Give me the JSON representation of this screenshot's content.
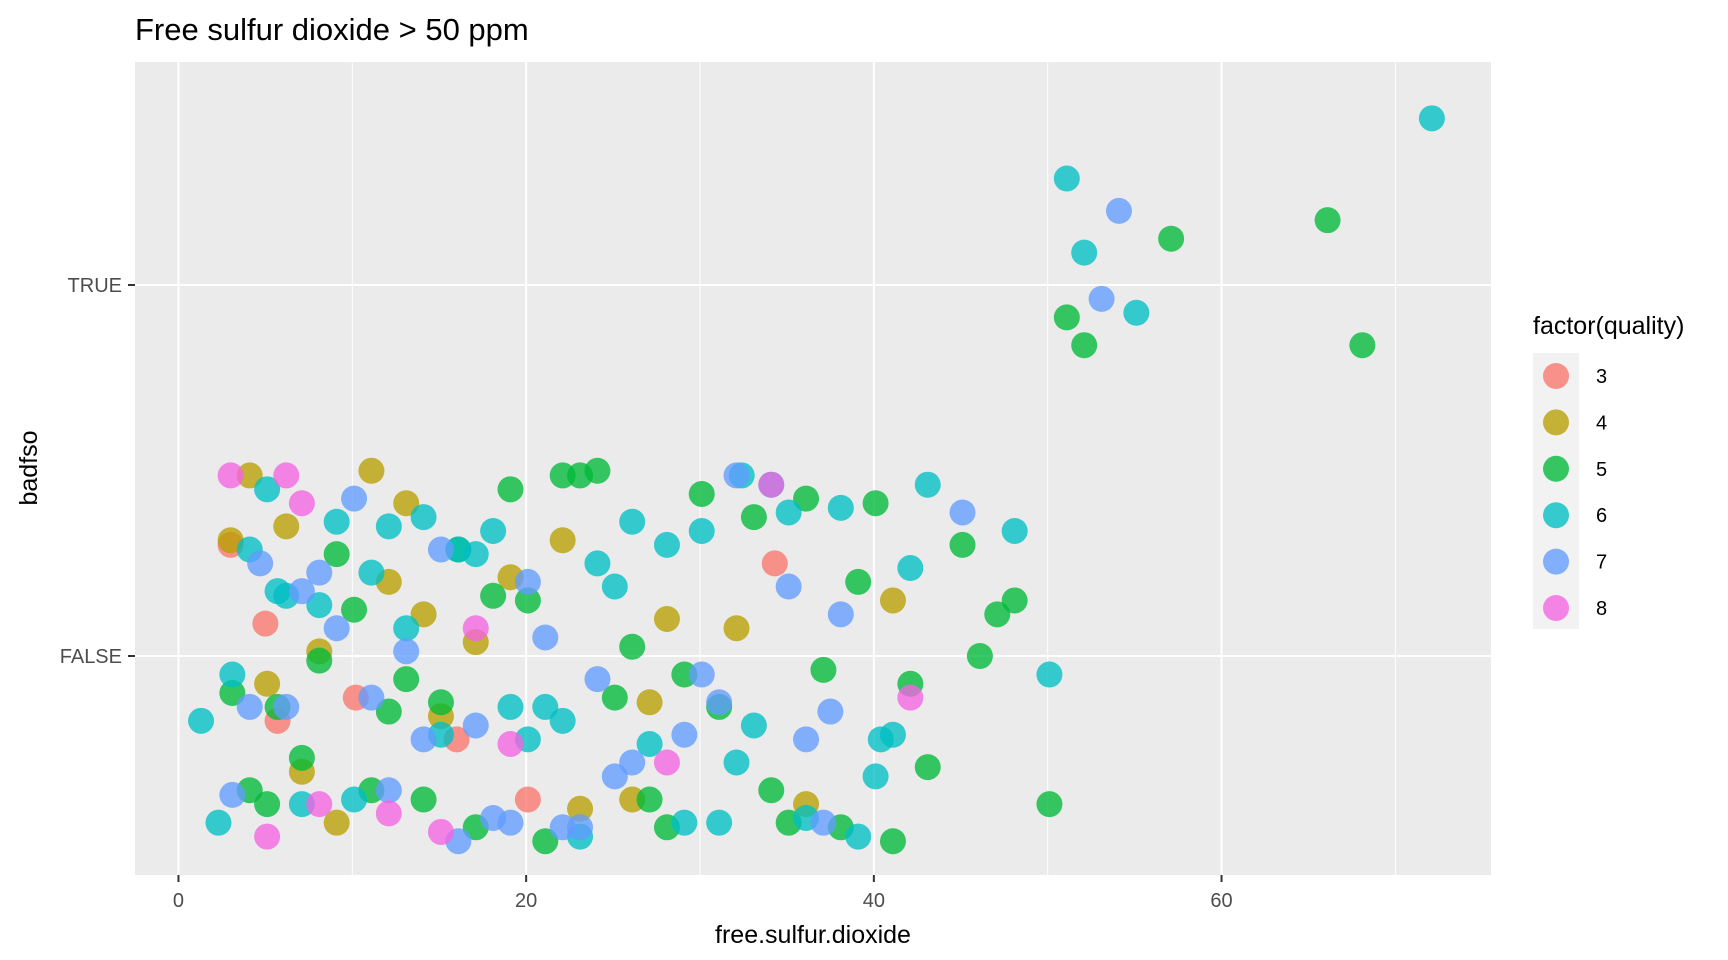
{
  "chart_data": {
    "type": "scatter",
    "title": "Free sulfur dioxide > 50 ppm",
    "xlabel": "free.sulfur.dioxide",
    "ylabel": "badfso",
    "xlim": [
      -2.5,
      75.5
    ],
    "x_ticks": [
      0,
      20,
      40,
      60
    ],
    "y_categories": [
      "FALSE",
      "TRUE"
    ],
    "jitter_note": "points are jittered vertically around their category",
    "grid": true,
    "legend": {
      "title": "factor(quality)",
      "position": "right",
      "levels": [
        "3",
        "4",
        "5",
        "6",
        "7",
        "8"
      ],
      "colors": {
        "3": "#F8766D",
        "4": "#B79F00",
        "5": "#00BA38",
        "6": "#00BFC4",
        "7": "#619CFF",
        "8": "#F564E3"
      }
    },
    "series": [
      {
        "name": "3",
        "points": [
          {
            "x": 3,
            "y": "FALSE",
            "j": 0.24
          },
          {
            "x": 5,
            "y": "FALSE",
            "j": 0.07
          },
          {
            "x": 5.7,
            "y": "FALSE",
            "j": -0.14
          },
          {
            "x": 10.2,
            "y": "FALSE",
            "j": -0.09
          },
          {
            "x": 16,
            "y": "FALSE",
            "j": -0.18
          },
          {
            "x": 20.1,
            "y": "FALSE",
            "j": -0.31
          },
          {
            "x": 34.3,
            "y": "FALSE",
            "j": 0.2
          }
        ]
      },
      {
        "name": "4",
        "points": [
          {
            "x": 3,
            "y": "FALSE",
            "j": 0.25
          },
          {
            "x": 4.1,
            "y": "FALSE",
            "j": 0.39
          },
          {
            "x": 5.1,
            "y": "FALSE",
            "j": -0.06
          },
          {
            "x": 6.2,
            "y": "FALSE",
            "j": 0.28
          },
          {
            "x": 7.1,
            "y": "FALSE",
            "j": -0.25
          },
          {
            "x": 8.1,
            "y": "FALSE",
            "j": 0.01
          },
          {
            "x": 9.1,
            "y": "FALSE",
            "j": -0.36
          },
          {
            "x": 11.1,
            "y": "FALSE",
            "j": 0.4
          },
          {
            "x": 12.1,
            "y": "FALSE",
            "j": 0.16
          },
          {
            "x": 13.1,
            "y": "FALSE",
            "j": 0.33
          },
          {
            "x": 14.1,
            "y": "FALSE",
            "j": 0.09
          },
          {
            "x": 15.1,
            "y": "FALSE",
            "j": -0.13
          },
          {
            "x": 17.1,
            "y": "FALSE",
            "j": 0.03
          },
          {
            "x": 19.1,
            "y": "FALSE",
            "j": 0.17
          },
          {
            "x": 22.1,
            "y": "FALSE",
            "j": 0.25
          },
          {
            "x": 23.1,
            "y": "FALSE",
            "j": -0.33
          },
          {
            "x": 26.1,
            "y": "FALSE",
            "j": -0.31
          },
          {
            "x": 27.1,
            "y": "FALSE",
            "j": -0.1
          },
          {
            "x": 28.1,
            "y": "FALSE",
            "j": 0.08
          },
          {
            "x": 32.1,
            "y": "FALSE",
            "j": 0.06
          },
          {
            "x": 36.1,
            "y": "FALSE",
            "j": -0.32
          },
          {
            "x": 41.1,
            "y": "FALSE",
            "j": 0.12
          }
        ]
      },
      {
        "name": "5",
        "points": [
          {
            "x": 3.1,
            "y": "FALSE",
            "j": -0.08
          },
          {
            "x": 4.1,
            "y": "FALSE",
            "j": -0.29
          },
          {
            "x": 5.1,
            "y": "FALSE",
            "j": -0.32
          },
          {
            "x": 5.7,
            "y": "FALSE",
            "j": -0.11
          },
          {
            "x": 7.1,
            "y": "FALSE",
            "j": -0.22
          },
          {
            "x": 8.1,
            "y": "FALSE",
            "j": -0.01
          },
          {
            "x": 9.1,
            "y": "FALSE",
            "j": 0.22
          },
          {
            "x": 10.1,
            "y": "FALSE",
            "j": 0.1
          },
          {
            "x": 11.1,
            "y": "FALSE",
            "j": -0.29
          },
          {
            "x": 12.1,
            "y": "FALSE",
            "j": -0.12
          },
          {
            "x": 13.1,
            "y": "FALSE",
            "j": -0.05
          },
          {
            "x": 14.1,
            "y": "FALSE",
            "j": -0.31
          },
          {
            "x": 15.1,
            "y": "FALSE",
            "j": -0.1
          },
          {
            "x": 16.1,
            "y": "FALSE",
            "j": 0.23
          },
          {
            "x": 17.1,
            "y": "FALSE",
            "j": -0.37
          },
          {
            "x": 18.1,
            "y": "FALSE",
            "j": 0.13
          },
          {
            "x": 19.1,
            "y": "FALSE",
            "j": 0.36
          },
          {
            "x": 20.1,
            "y": "FALSE",
            "j": 0.12
          },
          {
            "x": 21.1,
            "y": "FALSE",
            "j": -0.4
          },
          {
            "x": 22.1,
            "y": "FALSE",
            "j": 0.39
          },
          {
            "x": 23.1,
            "y": "FALSE",
            "j": 0.39
          },
          {
            "x": 24.1,
            "y": "FALSE",
            "j": 0.4
          },
          {
            "x": 25.1,
            "y": "FALSE",
            "j": -0.09
          },
          {
            "x": 26.1,
            "y": "FALSE",
            "j": 0.02
          },
          {
            "x": 27.1,
            "y": "FALSE",
            "j": -0.31
          },
          {
            "x": 28.1,
            "y": "FALSE",
            "j": -0.37
          },
          {
            "x": 29.1,
            "y": "FALSE",
            "j": -0.04
          },
          {
            "x": 30.1,
            "y": "FALSE",
            "j": 0.35
          },
          {
            "x": 31.1,
            "y": "FALSE",
            "j": -0.11
          },
          {
            "x": 33.1,
            "y": "FALSE",
            "j": 0.3
          },
          {
            "x": 34.1,
            "y": "FALSE",
            "j": -0.29
          },
          {
            "x": 35.1,
            "y": "FALSE",
            "j": -0.36
          },
          {
            "x": 36.1,
            "y": "FALSE",
            "j": 0.34
          },
          {
            "x": 37.1,
            "y": "FALSE",
            "j": -0.03
          },
          {
            "x": 38.1,
            "y": "FALSE",
            "j": -0.37
          },
          {
            "x": 39.1,
            "y": "FALSE",
            "j": 0.16
          },
          {
            "x": 40.1,
            "y": "FALSE",
            "j": 0.33
          },
          {
            "x": 41.1,
            "y": "FALSE",
            "j": -0.4
          },
          {
            "x": 42.1,
            "y": "FALSE",
            "j": -0.06
          },
          {
            "x": 43.1,
            "y": "FALSE",
            "j": -0.24
          },
          {
            "x": 45.1,
            "y": "FALSE",
            "j": 0.24
          },
          {
            "x": 46.1,
            "y": "FALSE",
            "j": 0.0
          },
          {
            "x": 47.1,
            "y": "FALSE",
            "j": 0.09
          },
          {
            "x": 48.1,
            "y": "FALSE",
            "j": 0.12
          },
          {
            "x": 50.1,
            "y": "FALSE",
            "j": -0.32
          },
          {
            "x": 51.1,
            "y": "TRUE",
            "j": -0.07
          },
          {
            "x": 52.1,
            "y": "TRUE",
            "j": -0.13
          },
          {
            "x": 57.1,
            "y": "TRUE",
            "j": 0.1
          },
          {
            "x": 66.1,
            "y": "TRUE",
            "j": 0.14
          },
          {
            "x": 68.1,
            "y": "TRUE",
            "j": -0.13
          }
        ]
      },
      {
        "name": "6",
        "points": [
          {
            "x": 1.3,
            "y": "FALSE",
            "j": -0.14
          },
          {
            "x": 2.3,
            "y": "FALSE",
            "j": -0.36
          },
          {
            "x": 3.1,
            "y": "FALSE",
            "j": -0.04
          },
          {
            "x": 4.1,
            "y": "FALSE",
            "j": 0.23
          },
          {
            "x": 5.1,
            "y": "FALSE",
            "j": 0.36
          },
          {
            "x": 5.7,
            "y": "FALSE",
            "j": 0.14
          },
          {
            "x": 6.2,
            "y": "FALSE",
            "j": 0.13
          },
          {
            "x": 7.1,
            "y": "FALSE",
            "j": -0.32
          },
          {
            "x": 8.1,
            "y": "FALSE",
            "j": 0.11
          },
          {
            "x": 9.1,
            "y": "FALSE",
            "j": 0.29
          },
          {
            "x": 10.1,
            "y": "FALSE",
            "j": -0.31
          },
          {
            "x": 11.1,
            "y": "FALSE",
            "j": 0.18
          },
          {
            "x": 12.1,
            "y": "FALSE",
            "j": 0.28
          },
          {
            "x": 13.1,
            "y": "FALSE",
            "j": 0.06
          },
          {
            "x": 14.1,
            "y": "FALSE",
            "j": 0.3
          },
          {
            "x": 15.1,
            "y": "FALSE",
            "j": -0.17
          },
          {
            "x": 16.1,
            "y": "FALSE",
            "j": 0.23
          },
          {
            "x": 17.1,
            "y": "FALSE",
            "j": 0.22
          },
          {
            "x": 18.1,
            "y": "FALSE",
            "j": 0.27
          },
          {
            "x": 19.1,
            "y": "FALSE",
            "j": -0.11
          },
          {
            "x": 20.1,
            "y": "FALSE",
            "j": -0.18
          },
          {
            "x": 21.1,
            "y": "FALSE",
            "j": -0.11
          },
          {
            "x": 22.1,
            "y": "FALSE",
            "j": -0.14
          },
          {
            "x": 23.1,
            "y": "FALSE",
            "j": -0.39
          },
          {
            "x": 24.1,
            "y": "FALSE",
            "j": 0.2
          },
          {
            "x": 25.1,
            "y": "FALSE",
            "j": 0.15
          },
          {
            "x": 26.1,
            "y": "FALSE",
            "j": 0.29
          },
          {
            "x": 27.1,
            "y": "FALSE",
            "j": -0.19
          },
          {
            "x": 28.1,
            "y": "FALSE",
            "j": 0.24
          },
          {
            "x": 29.1,
            "y": "FALSE",
            "j": -0.36
          },
          {
            "x": 30.1,
            "y": "FALSE",
            "j": 0.27
          },
          {
            "x": 31.1,
            "y": "FALSE",
            "j": -0.36
          },
          {
            "x": 32.1,
            "y": "FALSE",
            "j": -0.23
          },
          {
            "x": 32.4,
            "y": "FALSE",
            "j": 0.39
          },
          {
            "x": 33.1,
            "y": "FALSE",
            "j": -0.15
          },
          {
            "x": 34.1,
            "y": "FALSE",
            "j": 0.37
          },
          {
            "x": 35.1,
            "y": "FALSE",
            "j": 0.31
          },
          {
            "x": 36.1,
            "y": "FALSE",
            "j": -0.35
          },
          {
            "x": 38.1,
            "y": "FALSE",
            "j": 0.32
          },
          {
            "x": 39.1,
            "y": "FALSE",
            "j": -0.39
          },
          {
            "x": 40.1,
            "y": "FALSE",
            "j": -0.26
          },
          {
            "x": 40.4,
            "y": "FALSE",
            "j": -0.18
          },
          {
            "x": 41.1,
            "y": "FALSE",
            "j": -0.17
          },
          {
            "x": 42.1,
            "y": "FALSE",
            "j": 0.19
          },
          {
            "x": 43.1,
            "y": "FALSE",
            "j": 0.37
          },
          {
            "x": 48.1,
            "y": "FALSE",
            "j": 0.27
          },
          {
            "x": 50.1,
            "y": "FALSE",
            "j": -0.04
          },
          {
            "x": 51.1,
            "y": "TRUE",
            "j": 0.23
          },
          {
            "x": 52.1,
            "y": "TRUE",
            "j": 0.07
          },
          {
            "x": 55.1,
            "y": "TRUE",
            "j": -0.06
          },
          {
            "x": 72.1,
            "y": "TRUE",
            "j": 0.36
          }
        ]
      },
      {
        "name": "7",
        "points": [
          {
            "x": 3.1,
            "y": "FALSE",
            "j": -0.3
          },
          {
            "x": 4.1,
            "y": "FALSE",
            "j": -0.11
          },
          {
            "x": 4.7,
            "y": "FALSE",
            "j": 0.2
          },
          {
            "x": 6.2,
            "y": "FALSE",
            "j": -0.11
          },
          {
            "x": 7.1,
            "y": "FALSE",
            "j": 0.14
          },
          {
            "x": 8.1,
            "y": "FALSE",
            "j": 0.18
          },
          {
            "x": 9.1,
            "y": "FALSE",
            "j": 0.06
          },
          {
            "x": 10.1,
            "y": "FALSE",
            "j": 0.34
          },
          {
            "x": 11.1,
            "y": "FALSE",
            "j": -0.09
          },
          {
            "x": 12.1,
            "y": "FALSE",
            "j": -0.29
          },
          {
            "x": 13.1,
            "y": "FALSE",
            "j": 0.01
          },
          {
            "x": 14.1,
            "y": "FALSE",
            "j": -0.18
          },
          {
            "x": 15.1,
            "y": "FALSE",
            "j": 0.23
          },
          {
            "x": 16.1,
            "y": "FALSE",
            "j": -0.4
          },
          {
            "x": 17.1,
            "y": "FALSE",
            "j": -0.15
          },
          {
            "x": 18.1,
            "y": "FALSE",
            "j": -0.35
          },
          {
            "x": 19.1,
            "y": "FALSE",
            "j": -0.36
          },
          {
            "x": 20.1,
            "y": "FALSE",
            "j": 0.16
          },
          {
            "x": 21.1,
            "y": "FALSE",
            "j": 0.04
          },
          {
            "x": 22.1,
            "y": "FALSE",
            "j": -0.37
          },
          {
            "x": 23.1,
            "y": "FALSE",
            "j": -0.37
          },
          {
            "x": 24.1,
            "y": "FALSE",
            "j": -0.05
          },
          {
            "x": 25.1,
            "y": "FALSE",
            "j": -0.26
          },
          {
            "x": 26.1,
            "y": "FALSE",
            "j": -0.23
          },
          {
            "x": 29.1,
            "y": "FALSE",
            "j": -0.17
          },
          {
            "x": 30.1,
            "y": "FALSE",
            "j": -0.04
          },
          {
            "x": 31.1,
            "y": "FALSE",
            "j": -0.1
          },
          {
            "x": 32.1,
            "y": "FALSE",
            "j": 0.39
          },
          {
            "x": 35.1,
            "y": "FALSE",
            "j": 0.15
          },
          {
            "x": 36.1,
            "y": "FALSE",
            "j": -0.18
          },
          {
            "x": 37.1,
            "y": "FALSE",
            "j": -0.36
          },
          {
            "x": 37.5,
            "y": "FALSE",
            "j": -0.12
          },
          {
            "x": 38.1,
            "y": "FALSE",
            "j": 0.09
          },
          {
            "x": 45.1,
            "y": "FALSE",
            "j": 0.31
          },
          {
            "x": 53.1,
            "y": "TRUE",
            "j": -0.03
          },
          {
            "x": 54.1,
            "y": "TRUE",
            "j": 0.16
          }
        ]
      },
      {
        "name": "8",
        "points": [
          {
            "x": 3,
            "y": "FALSE",
            "j": 0.39
          },
          {
            "x": 5.1,
            "y": "FALSE",
            "j": -0.39
          },
          {
            "x": 6.2,
            "y": "FALSE",
            "j": 0.39
          },
          {
            "x": 7.1,
            "y": "FALSE",
            "j": 0.33
          },
          {
            "x": 8.1,
            "y": "FALSE",
            "j": -0.32
          },
          {
            "x": 12.1,
            "y": "FALSE",
            "j": -0.34
          },
          {
            "x": 15.1,
            "y": "FALSE",
            "j": -0.38
          },
          {
            "x": 17.1,
            "y": "FALSE",
            "j": 0.06
          },
          {
            "x": 19.1,
            "y": "FALSE",
            "j": -0.19
          },
          {
            "x": 28.1,
            "y": "FALSE",
            "j": -0.23
          },
          {
            "x": 34.1,
            "y": "FALSE",
            "j": 0.37
          },
          {
            "x": 42.1,
            "y": "FALSE",
            "j": -0.09
          }
        ]
      }
    ]
  }
}
